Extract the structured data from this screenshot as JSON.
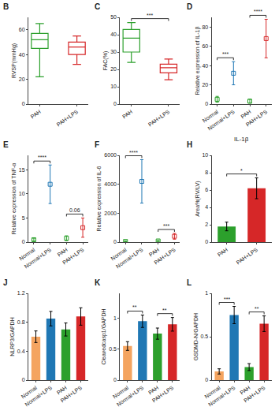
{
  "chart_data": [
    {
      "type": "box",
      "categories": [
        "PAH",
        "PAH+LPS"
      ],
      "boxes": [
        {
          "q1": 45,
          "median": 52,
          "q3": 57,
          "lower_whisker": 22,
          "upper_whisker": 65
        },
        {
          "q1": 40,
          "median": 46,
          "q3": 50,
          "lower_whisker": 32,
          "upper_whisker": 55
        }
      ],
      "colors": [
        "#2ca02c",
        "#d62728"
      ],
      "ylabel": "RVSP(mmHg)",
      "ylim": [
        0,
        70
      ],
      "yticks": [
        0,
        20,
        40,
        60
      ],
      "grid": false,
      "annotations": [
        {
          "text": "B"
        }
      ]
    },
    {
      "type": "box",
      "categories": [
        "PAH",
        "PAH+LPS"
      ],
      "boxes": [
        {
          "q1": 30,
          "median": 38,
          "q3": 43,
          "lower_whisker": 24,
          "upper_whisker": 47
        },
        {
          "q1": 18,
          "median": 21,
          "q3": 23,
          "lower_whisker": 14,
          "upper_whisker": 26
        }
      ],
      "colors": [
        "#2ca02c",
        "#d62728"
      ],
      "ylabel": "FAC(%)",
      "ylim": [
        0,
        50
      ],
      "yticks": [
        0,
        10,
        20,
        30,
        40,
        50
      ],
      "grid": false,
      "annotations": [
        {
          "text": "C"
        },
        {
          "text": "***",
          "between": [
            "PAH",
            "PAH+LPS"
          ]
        }
      ]
    },
    {
      "type": "scatter",
      "marker": "square-open",
      "categories": [
        "Normal",
        "Normal+LPS",
        "PAH",
        "PAH+LPS"
      ],
      "values": [
        5,
        32,
        3,
        68
      ],
      "errors": [
        3,
        12,
        2,
        20
      ],
      "colors": [
        "#2ca02c",
        "#1f77b4",
        "#2ca02c",
        "#d62728"
      ],
      "ylabel": "Relative expression of IL-1β",
      "ylim": [
        0,
        90
      ],
      "yticks": [
        0,
        20,
        40,
        60,
        80
      ],
      "grid": false,
      "annotations": [
        {
          "text": "D"
        },
        {
          "text": "***",
          "between": [
            "Normal",
            "Normal+LPS"
          ]
        },
        {
          "text": "****",
          "between": [
            "PAH",
            "PAH+LPS"
          ]
        }
      ]
    },
    {
      "type": "scatter",
      "marker": "square-open",
      "categories": [
        "Normal",
        "Normal+LPS",
        "PAH",
        "PAH+LPS"
      ],
      "values": [
        0.5,
        12,
        0.8,
        3
      ],
      "errors": [
        0.3,
        4,
        0.5,
        2
      ],
      "colors": [
        "#2ca02c",
        "#1f77b4",
        "#2ca02c",
        "#d62728"
      ],
      "ylabel": "Relative expression of TNF-α",
      "ylim": [
        0,
        18
      ],
      "yticks": [
        0,
        5,
        10,
        15
      ],
      "grid": false,
      "annotations": [
        {
          "text": "E"
        },
        {
          "text": "****",
          "between": [
            "Normal",
            "Normal+LPS"
          ]
        },
        {
          "text": "0.06",
          "between": [
            "PAH",
            "PAH+LPS"
          ]
        }
      ]
    },
    {
      "type": "scatter",
      "marker": "square-open",
      "categories": [
        "Normal",
        "Normal+LPS",
        "PAH",
        "PAH+LPS"
      ],
      "values": [
        50,
        4200,
        80,
        400
      ],
      "errors": [
        30,
        1500,
        50,
        200
      ],
      "colors": [
        "#2ca02c",
        "#1f77b4",
        "#2ca02c",
        "#d62728"
      ],
      "ylabel": "Relative expression of IL-6",
      "ylim": [
        0,
        6000
      ],
      "yticks": [
        0,
        2000,
        4000,
        6000
      ],
      "grid": false,
      "annotations": [
        {
          "text": "F"
        },
        {
          "text": "****",
          "between": [
            "Normal",
            "Normal+LPS"
          ]
        },
        {
          "text": "***",
          "between": [
            "PAH",
            "PAH+LPS"
          ]
        }
      ]
    },
    {
      "type": "bar",
      "title": "IL-1β",
      "categories": [
        "PAH",
        "PAH+LPS"
      ],
      "values": [
        1.8,
        6.2
      ],
      "errors": [
        0.5,
        1.2
      ],
      "colors": [
        "#2ca02c",
        "#d62728"
      ],
      "ylabel": "Area%(RV/LV)",
      "ylim": [
        0,
        10
      ],
      "yticks": [
        0,
        2,
        4,
        6,
        8,
        10
      ],
      "grid": false,
      "annotations": [
        {
          "text": "H"
        },
        {
          "text": "*",
          "between": [
            "PAH",
            "PAH+LPS"
          ]
        }
      ]
    },
    {
      "type": "bar",
      "categories": [
        "Normal",
        "Normal+LPS",
        "PAH",
        "PAH+LPS"
      ],
      "values": [
        0.6,
        0.85,
        0.7,
        0.88
      ],
      "errors": [
        0.08,
        0.1,
        0.09,
        0.12
      ],
      "colors": [
        "#f4a460",
        "#1f77b4",
        "#2ca02c",
        "#d62728"
      ],
      "ylabel": "NLRP3/GAPDH",
      "ylim": [
        0,
        1.2
      ],
      "yticks": [
        0,
        0.4,
        0.8,
        1.2
      ],
      "grid": false,
      "annotations": [
        {
          "text": "J"
        }
      ]
    },
    {
      "type": "bar",
      "categories": [
        "Normal",
        "Normal+LPS",
        "PAH",
        "PAH+LPS"
      ],
      "values": [
        0.55,
        0.95,
        0.75,
        0.9
      ],
      "errors": [
        0.07,
        0.1,
        0.09,
        0.11
      ],
      "colors": [
        "#f4a460",
        "#1f77b4",
        "#2ca02c",
        "#d62728"
      ],
      "ylabel": "Cleavedcasp1/GAPDH",
      "ylim": [
        0,
        1.4
      ],
      "yticks": [
        0,
        0.5,
        1
      ],
      "grid": false,
      "annotations": [
        {
          "text": "K"
        },
        {
          "text": "**",
          "between": [
            "Normal",
            "Normal+LPS"
          ]
        },
        {
          "text": "**",
          "between": [
            "PAH",
            "PAH+LPS"
          ]
        }
      ]
    },
    {
      "type": "bar",
      "categories": [
        "Normal",
        "Normal+LPS",
        "PAH",
        "PAH+LPS"
      ],
      "values": [
        0.1,
        0.75,
        0.15,
        0.65
      ],
      "errors": [
        0.03,
        0.1,
        0.04,
        0.09
      ],
      "colors": [
        "#f4a460",
        "#1f77b4",
        "#2ca02c",
        "#d62728"
      ],
      "ylabel": "GSDMD-N/GAPDH",
      "ylim": [
        0,
        1
      ],
      "yticks": [
        0,
        0.5,
        1
      ],
      "grid": false,
      "annotations": [
        {
          "text": "L"
        },
        {
          "text": "***",
          "between": [
            "Normal",
            "Normal+LPS"
          ]
        },
        {
          "text": "**",
          "between": [
            "PAH",
            "PAH+LPS"
          ]
        }
      ]
    }
  ]
}
